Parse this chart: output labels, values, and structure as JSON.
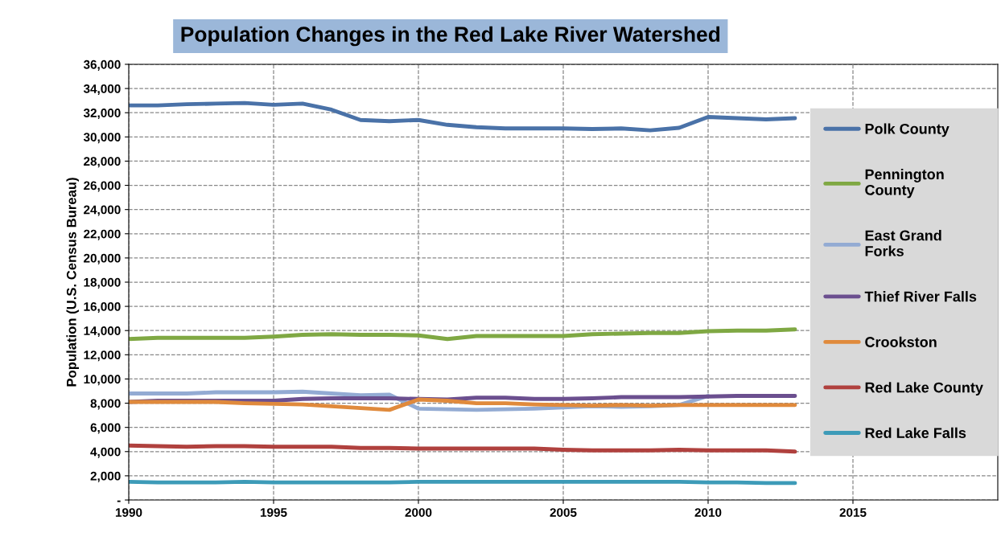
{
  "chart_data": {
    "type": "line",
    "title": "Population Changes in the Red Lake River Watershed",
    "ylabel": "Population (U.S. Census Bureau)",
    "x": [
      1990,
      1991,
      1992,
      1993,
      1994,
      1995,
      1996,
      1997,
      1998,
      1999,
      2000,
      2001,
      2002,
      2003,
      2004,
      2005,
      2006,
      2007,
      2008,
      2009,
      2010,
      2011,
      2012,
      2013
    ],
    "series": [
      {
        "name": "Polk County",
        "color": "#4a72a8",
        "values": [
          32600,
          32600,
          32700,
          32750,
          32800,
          32650,
          32750,
          32250,
          31400,
          31300,
          31400,
          31000,
          30800,
          30700,
          30700,
          30700,
          30650,
          30700,
          30550,
          30750,
          31650,
          31550,
          31450,
          31550
        ]
      },
      {
        "name": "Pennington County",
        "color": "#7fa843",
        "values": [
          13300,
          13400,
          13400,
          13400,
          13400,
          13500,
          13650,
          13700,
          13650,
          13650,
          13600,
          13300,
          13550,
          13550,
          13550,
          13550,
          13700,
          13750,
          13800,
          13800,
          13950,
          14000,
          14000,
          14100
        ]
      },
      {
        "name": "East Grand Forks",
        "color": "#93abd3",
        "values": [
          8800,
          8800,
          8800,
          8900,
          8900,
          8900,
          8950,
          8800,
          8650,
          8700,
          7550,
          7500,
          7450,
          7500,
          7550,
          7650,
          7750,
          7700,
          7750,
          7850,
          8600,
          null,
          null,
          null
        ]
      },
      {
        "name": "Thief River Falls",
        "color": "#6b4f8f",
        "values": [
          8100,
          8200,
          8200,
          8200,
          8200,
          8200,
          8350,
          8400,
          8400,
          8400,
          8350,
          8300,
          8450,
          8450,
          8350,
          8350,
          8400,
          8500,
          8500,
          8500,
          8550,
          8600,
          8600,
          8600
        ]
      },
      {
        "name": "Crookston",
        "color": "#e08a3c",
        "values": [
          8100,
          8100,
          8100,
          8100,
          8000,
          7950,
          7900,
          7750,
          7600,
          7450,
          8300,
          8200,
          8000,
          8000,
          7900,
          7850,
          7800,
          7850,
          7800,
          7850,
          7850,
          7850,
          7850,
          7850
        ]
      },
      {
        "name": "Red Lake County",
        "color": "#b0413e",
        "values": [
          4500,
          4450,
          4400,
          4450,
          4450,
          4400,
          4400,
          4400,
          4300,
          4300,
          4250,
          4250,
          4250,
          4250,
          4250,
          4150,
          4100,
          4100,
          4100,
          4150,
          4100,
          4100,
          4100,
          4000
        ]
      },
      {
        "name": "Red Lake Falls",
        "color": "#3d9bb8",
        "values": [
          1500,
          1450,
          1450,
          1450,
          1500,
          1450,
          1450,
          1450,
          1450,
          1450,
          1500,
          1500,
          1500,
          1500,
          1500,
          1500,
          1500,
          1500,
          1500,
          1500,
          1450,
          1450,
          1400,
          1400
        ]
      }
    ],
    "xlim": [
      1990,
      2020
    ],
    "xticks": [
      1990,
      1995,
      2000,
      2005,
      2010,
      2015
    ],
    "ylim": [
      0,
      36000
    ],
    "yticks": [
      {
        "value": 0,
        "label": "-"
      },
      {
        "value": 2000,
        "label": "2,000"
      },
      {
        "value": 4000,
        "label": "4,000"
      },
      {
        "value": 6000,
        "label": "6,000"
      },
      {
        "value": 8000,
        "label": "8,000"
      },
      {
        "value": 10000,
        "label": "10,000"
      },
      {
        "value": 12000,
        "label": "12,000"
      },
      {
        "value": 14000,
        "label": "14,000"
      },
      {
        "value": 16000,
        "label": "16,000"
      },
      {
        "value": 18000,
        "label": "18,000"
      },
      {
        "value": 20000,
        "label": "20,000"
      },
      {
        "value": 22000,
        "label": "22,000"
      },
      {
        "value": 24000,
        "label": "24,000"
      },
      {
        "value": 26000,
        "label": "26,000"
      },
      {
        "value": 28000,
        "label": "28,000"
      },
      {
        "value": 30000,
        "label": "30,000"
      },
      {
        "value": 32000,
        "label": "32,000"
      },
      {
        "value": 34000,
        "label": "34,000"
      },
      {
        "value": 36000,
        "label": "36,000"
      }
    ],
    "grid": true,
    "legend": "right",
    "line_style": "solid",
    "marker": "none"
  }
}
